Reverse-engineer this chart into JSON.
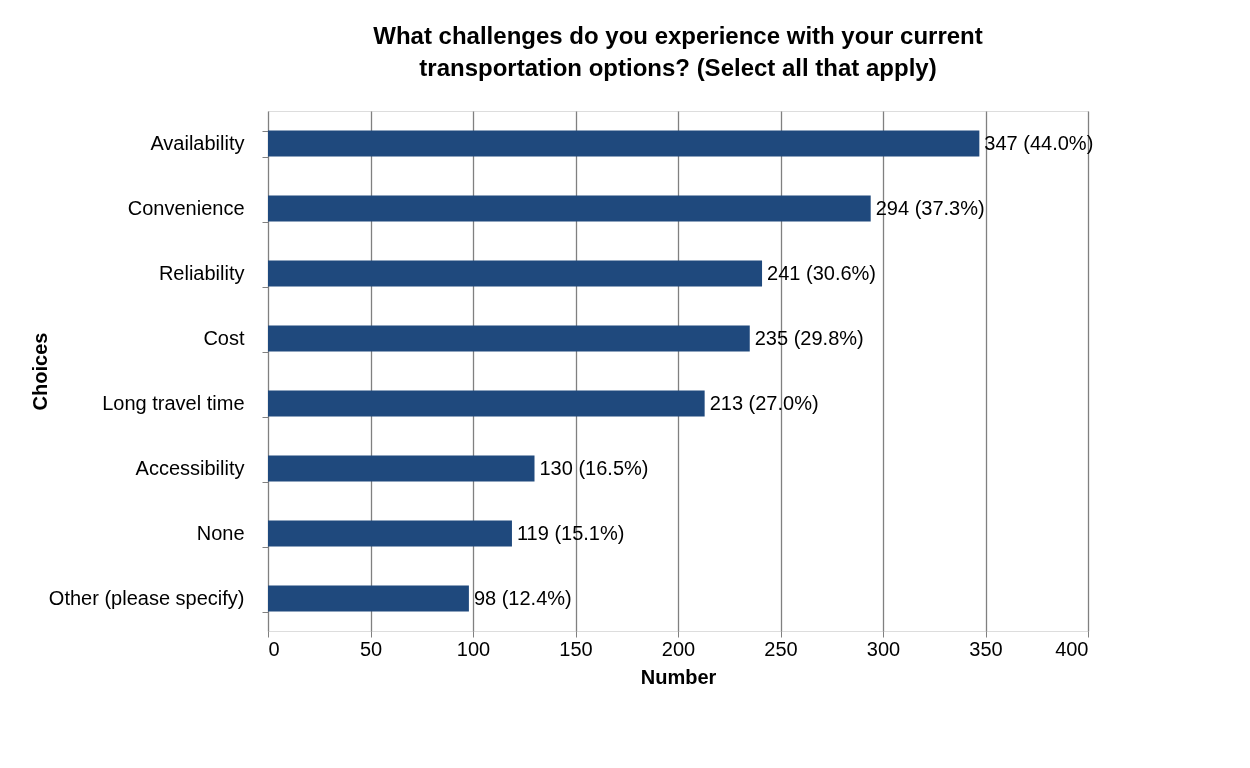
{
  "chart_data": {
    "type": "bar",
    "orientation": "horizontal",
    "title": "What challenges do you experience with your current transportation options? (Select all that apply)",
    "xlabel": "Number",
    "ylabel": "Choices",
    "categories": [
      "Availability",
      "Convenience",
      "Reliability",
      "Cost",
      "Long travel time",
      "Accessibility",
      "None",
      "Other (please specify)"
    ],
    "values": [
      347,
      294,
      241,
      235,
      213,
      130,
      119,
      98
    ],
    "value_labels": [
      "347 (44.0%)",
      "294 (37.3%)",
      "241 (30.6%)",
      "235 (29.8%)",
      "213 (27.0%)",
      "130 (16.5%)",
      "119 (15.1%)",
      "98 (12.4%)"
    ],
    "color": "#1f497d",
    "xlim": [
      0,
      400
    ],
    "xticks": [
      0,
      50,
      100,
      150,
      200,
      250,
      300,
      350,
      400
    ],
    "grid": "x"
  }
}
